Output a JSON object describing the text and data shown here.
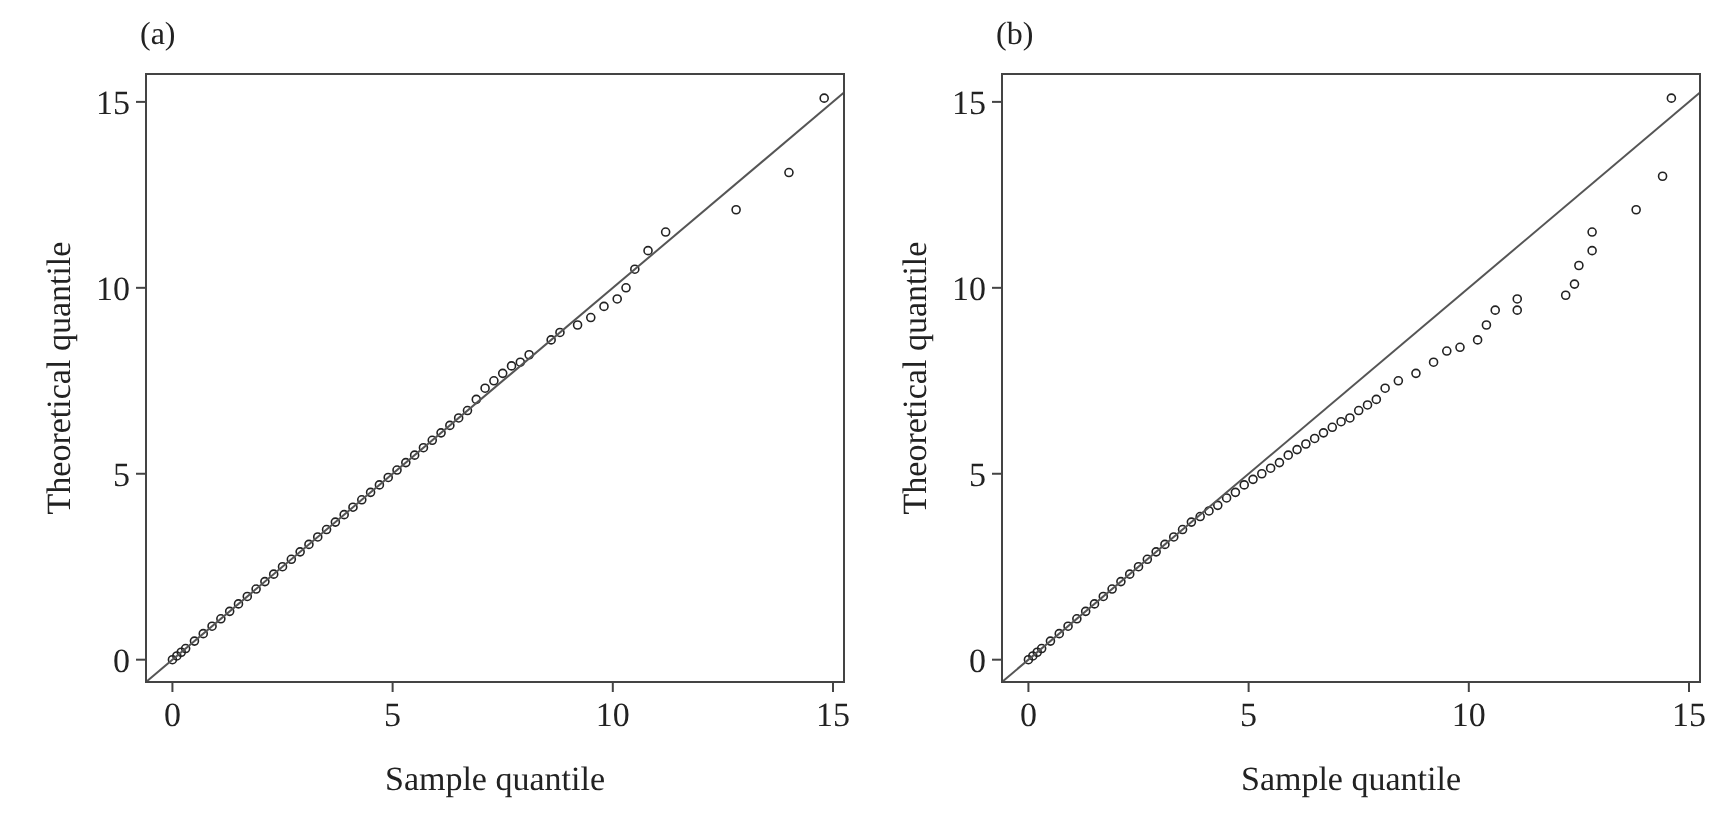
{
  "chart_data": [
    {
      "type": "scatter",
      "title": "(a)",
      "xlabel": "Sample quantile",
      "ylabel": "Theoretical quantile",
      "xlim": [
        -0.6,
        15.25
      ],
      "ylim": [
        -0.6,
        15.75
      ],
      "xticks": [
        0,
        5,
        10,
        15
      ],
      "yticks": [
        0,
        5,
        10,
        15
      ],
      "grid": false,
      "marker": "circle",
      "series": [
        {
          "color": "#222222",
          "x": [
            0,
            0.1,
            0.2,
            0.3,
            0.5,
            0.7,
            0.9,
            1.1,
            1.3,
            1.5,
            1.7,
            1.9,
            2.1,
            2.3,
            2.5,
            2.7,
            2.9,
            3.1,
            3.3,
            3.5,
            3.7,
            3.9,
            4.1,
            4.3,
            4.5,
            4.7,
            4.9,
            5.1,
            5.3,
            5.5,
            5.7,
            5.9,
            6.1,
            6.3,
            6.5,
            6.7,
            6.9,
            7.1,
            7.3,
            7.5,
            7.7,
            7.9,
            8.1,
            8.6,
            8.8,
            9.2,
            9.5,
            9.8,
            10.1,
            10.3,
            10.5,
            10.8,
            11.2,
            12.8,
            14,
            14.8
          ],
          "values": [
            0,
            0.1,
            0.2,
            0.3,
            0.5,
            0.7,
            0.9,
            1.1,
            1.3,
            1.5,
            1.7,
            1.9,
            2.1,
            2.3,
            2.5,
            2.7,
            2.9,
            3.1,
            3.3,
            3.5,
            3.7,
            3.9,
            4.1,
            4.3,
            4.5,
            4.7,
            4.9,
            5.1,
            5.3,
            5.5,
            5.7,
            5.9,
            6.1,
            6.3,
            6.5,
            6.7,
            7,
            7.3,
            7.5,
            7.7,
            7.9,
            8.0,
            8.2,
            8.6,
            8.8,
            9.0,
            9.2,
            9.5,
            9.7,
            10.0,
            10.5,
            11.0,
            11.5,
            12.1,
            13.1,
            15.1
          ]
        },
        {
          "type": "line",
          "color": "#555555",
          "marker": "none",
          "x": [
            -0.6,
            15.25
          ],
          "values": [
            -0.6,
            15.25
          ]
        }
      ]
    },
    {
      "type": "scatter",
      "title": "(b)",
      "xlabel": "Sample quantile",
      "ylabel": "Theoretical quantile",
      "xlim": [
        -0.6,
        15.25
      ],
      "ylim": [
        -0.6,
        15.75
      ],
      "xticks": [
        0,
        5,
        10,
        15
      ],
      "yticks": [
        0,
        5,
        10,
        15
      ],
      "grid": false,
      "marker": "circle",
      "series": [
        {
          "color": "#222222",
          "x": [
            0,
            0.1,
            0.2,
            0.3,
            0.5,
            0.7,
            0.9,
            1.1,
            1.3,
            1.5,
            1.7,
            1.9,
            2.1,
            2.3,
            2.5,
            2.7,
            2.9,
            3.1,
            3.3,
            3.5,
            3.7,
            3.9,
            4.1,
            4.3,
            4.5,
            4.7,
            4.9,
            5.1,
            5.3,
            5.5,
            5.7,
            5.9,
            6.1,
            6.3,
            6.5,
            6.7,
            6.9,
            7.1,
            7.3,
            7.5,
            7.7,
            7.9,
            8.1,
            8.4,
            8.8,
            9.2,
            9.5,
            9.8,
            10.2,
            10.4,
            10.6,
            11.1,
            11.1,
            12.2,
            12.4,
            12.5,
            12.8,
            12.8,
            13.8,
            14.4,
            14.6
          ],
          "values": [
            0,
            0.1,
            0.2,
            0.3,
            0.5,
            0.7,
            0.9,
            1.1,
            1.3,
            1.5,
            1.7,
            1.9,
            2.1,
            2.3,
            2.5,
            2.7,
            2.9,
            3.1,
            3.3,
            3.5,
            3.7,
            3.85,
            4.0,
            4.15,
            4.35,
            4.5,
            4.7,
            4.85,
            5.0,
            5.15,
            5.3,
            5.5,
            5.65,
            5.8,
            5.95,
            6.1,
            6.25,
            6.4,
            6.5,
            6.7,
            6.85,
            7.0,
            7.3,
            7.5,
            7.7,
            8.0,
            8.3,
            8.4,
            8.6,
            9.0,
            9.4,
            9.4,
            9.7,
            9.8,
            10.1,
            10.6,
            11.0,
            11.5,
            12.1,
            13.0,
            15.1
          ]
        },
        {
          "type": "line",
          "color": "#555555",
          "marker": "none",
          "x": [
            -0.6,
            15.25
          ],
          "values": [
            -0.6,
            15.25
          ]
        }
      ]
    }
  ]
}
